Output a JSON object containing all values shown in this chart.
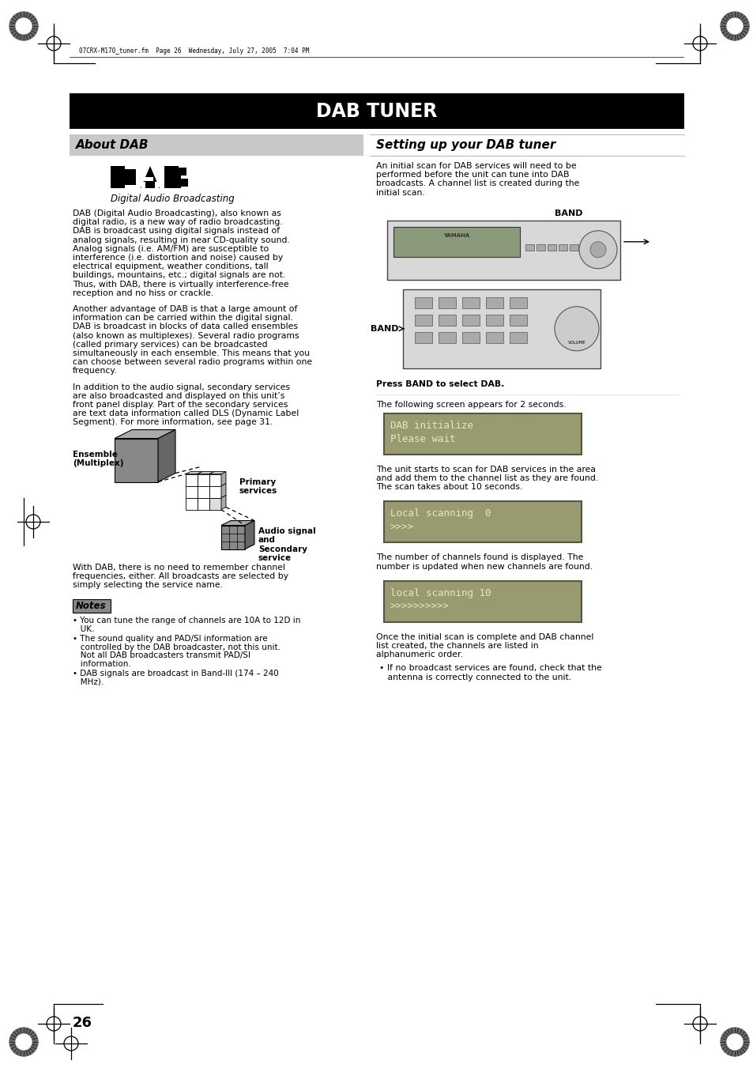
{
  "page_bg": "#ffffff",
  "header_bar_color": "#000000",
  "header_text": "DAB TUNER",
  "header_text_color": "#ffffff",
  "section_left_title": "About DAB",
  "section_right_title": "Setting up your DAB tuner",
  "section_header_bg": "#cccccc",
  "top_annotation": "07CRX-M170_tuner.fm  Page 26  Wednesday, July 27, 2005  7:04 PM",
  "page_number": "26",
  "body_font_size": 7.8,
  "notes_bg": "#888888",
  "lcd_bg": "#9a9a70",
  "lcd_text_color": "#e8e8c0",
  "lcd_border": "#555544",
  "left_body_paragraphs": [
    "DAB (Digital Audio Broadcasting), also known as digital radio, is a new way of radio broadcasting. DAB is broadcast using digital signals instead of analog signals, resulting in near CD-quality sound. Analog signals (i.e. AM/FM) are susceptible to interference (i.e. distortion and noise) caused by electrical equipment, weather conditions, tall buildings, mountains, etc.; digital signals are not. Thus, with DAB, there is virtually interference-free reception and no hiss or crackle.",
    "Another advantage of DAB is that a large amount of information can be carried within the digital signal. DAB is broadcast in blocks of data called ensembles (also known as multiplexes). Several radio programs (called primary services) can be broadcasted simultaneously in each ensemble. This means that you can choose between several radio programs within one frequency.",
    "In addition to the audio signal, secondary services are also broadcasted and displayed on this unit’s front panel display. Part of the secondary services are text data information called DLS (Dynamic Label Segment). For more information, see page 31.",
    "With DAB, there is no need to remember channel frequencies, either. All broadcasts are selected by simply selecting the service name."
  ],
  "notes_items": [
    "You can tune the range of channels are 10A to 12D in UK.",
    "The sound quality and PAD/SI information are controlled by the DAB broadcaster, not this unit. Not all DAB broadcasters transmit PAD/SI information.",
    "DAB signals are broadcast in Band-III (174 – 240 MHz)."
  ],
  "right_intro": "An initial scan for DAB services will need to be performed before the unit can tune into DAB broadcasts. A channel list is created during the initial scan.",
  "press_band_text": "Press BAND to select DAB.",
  "screen_appears_text": "The following screen appears for 2 seconds.",
  "lcd1_lines": [
    "DAB initialize",
    "Please wait"
  ],
  "scan_starts_text": "The unit starts to scan for DAB services in the area and add them to the channel list as they are found. The scan takes about 10 seconds.",
  "lcd2_lines": [
    "Local scanning  0",
    ">>>>"
  ],
  "channels_found_text": "The number of channels found is displayed. The number is updated when new channels are found.",
  "lcd3_lines": [
    "local scanning 10",
    ">>>>>>>>>>"
  ],
  "once_complete_text": "Once the initial scan is complete and DAB channel list created, the channels are listed in alphanumeric order.",
  "no_broadcast_text": "If no broadcast services are found, check that the antenna is correctly connected to the unit."
}
